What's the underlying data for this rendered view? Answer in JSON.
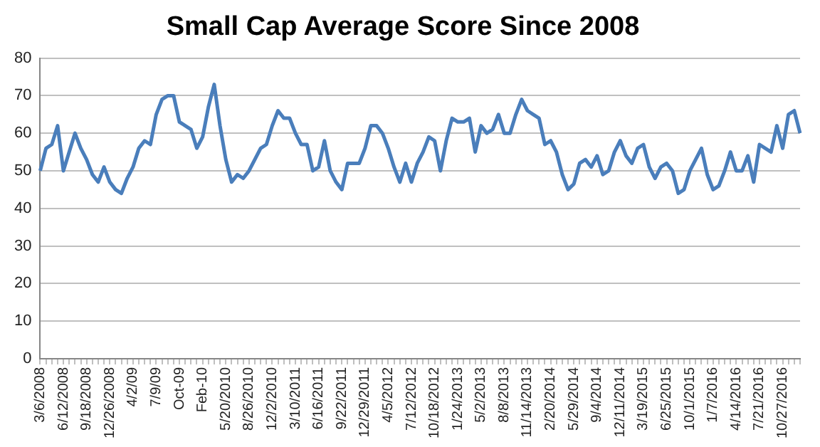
{
  "chart_data": {
    "type": "line",
    "title": "Small Cap Average Score Since 2008",
    "categories": [
      "3/6/2008",
      null,
      null,
      null,
      "6/12/2008",
      null,
      null,
      null,
      "9/18/2008",
      null,
      null,
      null,
      "12/26/2008",
      null,
      null,
      null,
      "4/2/09",
      null,
      null,
      null,
      "7/9/09",
      null,
      null,
      null,
      "Oct-09",
      null,
      null,
      null,
      "Feb-10",
      null,
      null,
      null,
      "5/20/2010",
      null,
      null,
      null,
      "8/26/2010",
      null,
      null,
      null,
      "12/2/2010",
      null,
      null,
      null,
      "3/10/2011",
      null,
      null,
      null,
      "6/16/2011",
      null,
      null,
      null,
      "9/22/2011",
      null,
      null,
      null,
      "12/29/2011",
      null,
      null,
      null,
      "4/5/2012",
      null,
      null,
      null,
      "7/12/2012",
      null,
      null,
      null,
      "10/18/2012",
      null,
      null,
      null,
      "1/24/2013",
      null,
      null,
      null,
      "5/2/2013",
      null,
      null,
      null,
      "8/8/2013",
      null,
      null,
      null,
      "11/14/2013",
      null,
      null,
      null,
      "2/20/2014",
      null,
      null,
      null,
      "5/29/2014",
      null,
      null,
      null,
      "9/4/2014",
      null,
      null,
      null,
      "12/11/2014",
      null,
      null,
      null,
      "3/19/2015",
      null,
      null,
      null,
      "6/25/2015",
      null,
      null,
      null,
      "10/1/2015",
      null,
      null,
      null,
      "1/7/2016",
      null,
      null,
      null,
      "4/14/2016",
      null,
      null,
      null,
      "7/21/2016",
      null,
      null,
      null,
      "10/27/2016",
      null,
      null,
      null
    ],
    "series": [
      {
        "color": "#4a7ebb",
        "values": [
          50,
          56,
          57,
          62,
          50,
          55,
          60,
          56,
          53,
          49,
          47,
          51,
          47,
          45,
          44,
          48,
          51,
          56,
          58,
          57,
          65,
          69,
          70,
          70,
          63,
          62,
          61,
          56,
          59,
          67,
          73,
          62,
          53,
          47,
          49,
          48,
          50,
          53,
          56,
          57,
          62,
          66,
          64,
          64,
          60,
          57,
          57,
          50,
          51,
          58,
          50,
          47,
          45,
          52,
          52,
          52,
          56,
          62,
          62,
          60,
          56,
          51,
          47,
          52,
          47,
          52,
          55,
          59,
          58,
          50,
          58,
          64,
          63,
          63,
          64,
          55,
          62,
          60,
          61,
          65,
          60,
          60,
          65,
          69,
          66,
          65,
          64,
          57,
          58,
          55,
          49,
          45,
          46.5,
          52,
          53,
          51,
          54,
          49,
          50,
          55,
          58,
          54,
          52,
          56,
          57,
          51,
          48,
          51,
          52,
          50,
          44,
          45,
          50,
          53,
          56,
          49,
          45,
          46,
          50,
          55,
          50,
          50,
          54,
          47,
          57,
          56,
          55,
          62,
          56,
          65,
          66,
          60
        ]
      }
    ],
    "ylim": [
      0,
      80
    ],
    "yticks": [
      0,
      10,
      20,
      30,
      40,
      50,
      60,
      70,
      80
    ],
    "grid": "y",
    "legend": false,
    "marker": "none",
    "line_style": "solid"
  }
}
